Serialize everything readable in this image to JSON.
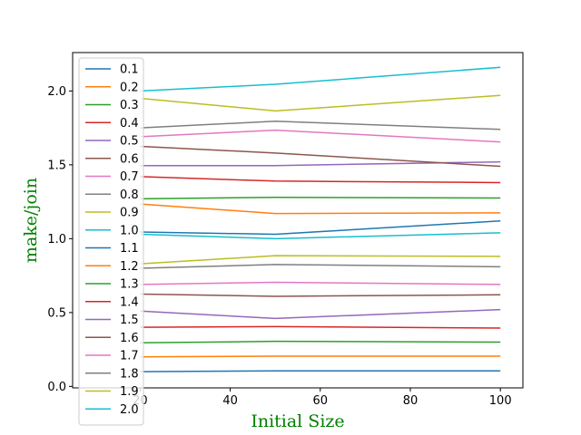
{
  "chart_data": {
    "type": "line",
    "x": [
      20,
      50,
      100
    ],
    "xlabel": "Initial Size",
    "ylabel": "make/join",
    "label_color": "#008000",
    "xlim": [
      5,
      105
    ],
    "ylim": [
      -0.01,
      2.26
    ],
    "xticks": [
      20,
      40,
      60,
      80,
      100
    ],
    "yticks": [
      0.0,
      0.5,
      1.0,
      1.5,
      2.0
    ],
    "xtick_labels": [
      "20",
      "40",
      "60",
      "80",
      "100"
    ],
    "ytick_labels": [
      "0.0",
      "0.5",
      "1.0",
      "1.5",
      "2.0"
    ],
    "grid": false,
    "legend_placement": "upper-left",
    "series": [
      {
        "name": "0.1",
        "color": "#1f77b4",
        "values": [
          0.1,
          0.105,
          0.105
        ]
      },
      {
        "name": "0.2",
        "color": "#ff7f0e",
        "values": [
          0.2,
          0.205,
          0.205
        ]
      },
      {
        "name": "0.3",
        "color": "#2ca02c",
        "values": [
          0.295,
          0.305,
          0.3
        ]
      },
      {
        "name": "0.4",
        "color": "#d62728",
        "values": [
          0.4,
          0.405,
          0.395
        ]
      },
      {
        "name": "0.5",
        "color": "#9467bd",
        "values": [
          0.51,
          0.46,
          0.52
        ]
      },
      {
        "name": "0.6",
        "color": "#8c564b",
        "values": [
          0.625,
          0.61,
          0.62
        ]
      },
      {
        "name": "0.7",
        "color": "#e377c2",
        "values": [
          0.69,
          0.705,
          0.69
        ]
      },
      {
        "name": "0.8",
        "color": "#7f7f7f",
        "values": [
          0.8,
          0.825,
          0.81
        ]
      },
      {
        "name": "0.9",
        "color": "#bcbd22",
        "values": [
          0.83,
          0.885,
          0.88
        ]
      },
      {
        "name": "1.0",
        "color": "#17becf",
        "values": [
          1.03,
          1.0,
          1.04
        ]
      },
      {
        "name": "1.1",
        "color": "#1f77b4",
        "values": [
          1.045,
          1.03,
          1.12
        ]
      },
      {
        "name": "1.2",
        "color": "#ff7f0e",
        "values": [
          1.235,
          1.17,
          1.175
        ]
      },
      {
        "name": "1.3",
        "color": "#2ca02c",
        "values": [
          1.27,
          1.28,
          1.275
        ]
      },
      {
        "name": "1.4",
        "color": "#d62728",
        "values": [
          1.42,
          1.39,
          1.38
        ]
      },
      {
        "name": "1.5",
        "color": "#9467bd",
        "values": [
          1.495,
          1.495,
          1.52
        ]
      },
      {
        "name": "1.6",
        "color": "#8c564b",
        "values": [
          1.625,
          1.58,
          1.49
        ]
      },
      {
        "name": "1.7",
        "color": "#e377c2",
        "values": [
          1.69,
          1.735,
          1.655
        ]
      },
      {
        "name": "1.8",
        "color": "#7f7f7f",
        "values": [
          1.75,
          1.795,
          1.74
        ]
      },
      {
        "name": "1.9",
        "color": "#bcbd22",
        "values": [
          1.95,
          1.865,
          1.97
        ]
      },
      {
        "name": "2.0",
        "color": "#17becf",
        "values": [
          2.0,
          2.045,
          2.16
        ]
      }
    ]
  }
}
